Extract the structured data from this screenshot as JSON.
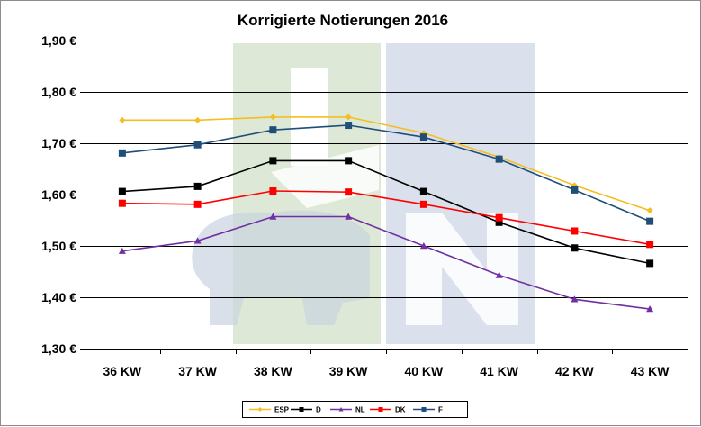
{
  "chart_data": {
    "type": "line",
    "title": "Korrigierte Notierungen 2016",
    "categories": [
      "36 KW",
      "37 KW",
      "38 KW",
      "39 KW",
      "40 KW",
      "41 KW",
      "42 KW",
      "43 KW"
    ],
    "y_ticks": [
      "1,30 €",
      "1,40 €",
      "1,50 €",
      "1,60 €",
      "1,70 €",
      "1,80 €",
      "1,90 €"
    ],
    "ylim": [
      1.3,
      1.9
    ],
    "grid": true,
    "legend_position": "bottom",
    "series": [
      {
        "name": "ESP",
        "color": "#f5bd1f",
        "marker": "diamond",
        "values": [
          1.745,
          1.745,
          1.751,
          1.751,
          1.72,
          1.673,
          1.618,
          1.569
        ]
      },
      {
        "name": "D",
        "color": "#000000",
        "marker": "square",
        "values": [
          1.606,
          1.616,
          1.666,
          1.666,
          1.606,
          1.546,
          1.496,
          1.466
        ]
      },
      {
        "name": "NL",
        "color": "#7030a0",
        "marker": "triangle",
        "values": [
          1.49,
          1.51,
          1.557,
          1.557,
          1.5,
          1.443,
          1.396,
          1.377
        ]
      },
      {
        "name": "DK",
        "color": "#ff0000",
        "marker": "square",
        "values": [
          1.583,
          1.581,
          1.607,
          1.605,
          1.581,
          1.555,
          1.529,
          1.503
        ]
      },
      {
        "name": "F",
        "color": "#1f4e79",
        "marker": "square",
        "values": [
          1.681,
          1.697,
          1.726,
          1.735,
          1.712,
          1.669,
          1.609,
          1.548
        ]
      }
    ],
    "watermark_colors": {
      "green": "#dde9d6",
      "blue": "#dbe1ec"
    }
  }
}
